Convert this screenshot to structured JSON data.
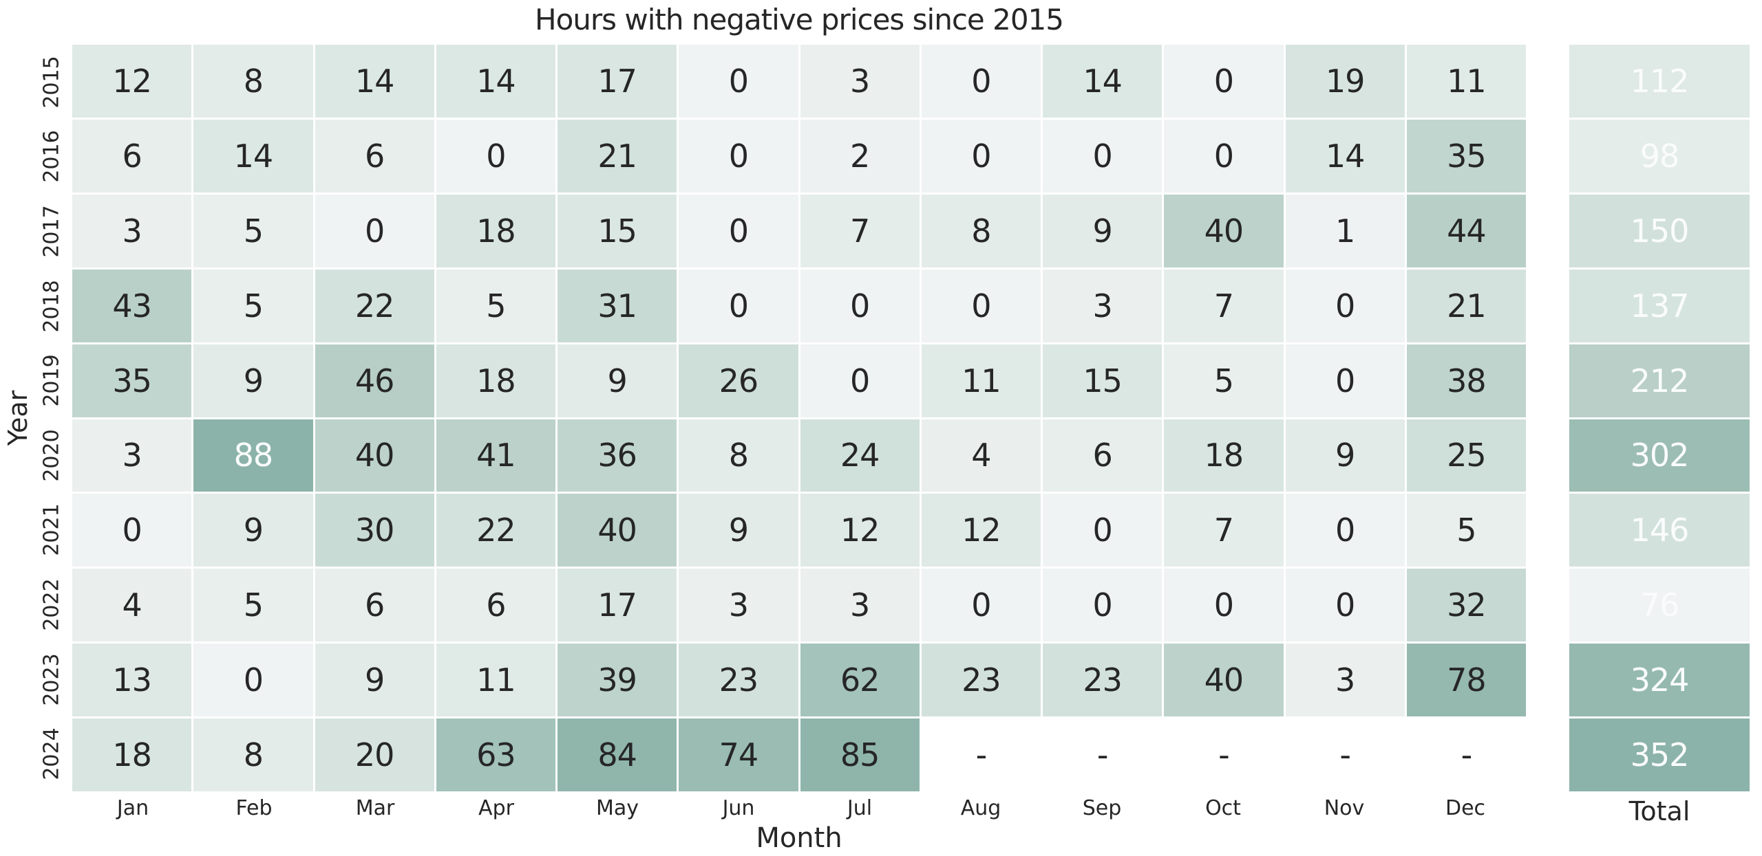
{
  "title": "Hours with negative prices since 2015",
  "chart_data": {
    "type": "heatmap",
    "title": "Hours with negative prices since 2015",
    "xlabel": "Month",
    "ylabel": "Year",
    "totals_label": "Total",
    "columns": [
      "Jan",
      "Feb",
      "Mar",
      "Apr",
      "May",
      "Jun",
      "Jul",
      "Aug",
      "Sep",
      "Oct",
      "Nov",
      "Dec"
    ],
    "rows": [
      "2015",
      "2016",
      "2017",
      "2018",
      "2019",
      "2020",
      "2021",
      "2022",
      "2023",
      "2024"
    ],
    "values": [
      [
        12,
        8,
        14,
        14,
        17,
        0,
        3,
        0,
        14,
        0,
        19,
        11
      ],
      [
        6,
        14,
        6,
        0,
        21,
        0,
        2,
        0,
        0,
        0,
        14,
        35
      ],
      [
        3,
        5,
        0,
        18,
        15,
        0,
        7,
        8,
        9,
        40,
        1,
        44
      ],
      [
        43,
        5,
        22,
        5,
        31,
        0,
        0,
        0,
        3,
        7,
        0,
        21
      ],
      [
        35,
        9,
        46,
        18,
        9,
        26,
        0,
        11,
        15,
        5,
        0,
        38
      ],
      [
        3,
        88,
        40,
        41,
        36,
        8,
        24,
        4,
        6,
        18,
        9,
        25
      ],
      [
        0,
        9,
        30,
        22,
        40,
        9,
        12,
        12,
        0,
        7,
        0,
        5
      ],
      [
        4,
        5,
        6,
        6,
        17,
        3,
        3,
        0,
        0,
        0,
        0,
        32
      ],
      [
        13,
        0,
        9,
        11,
        39,
        23,
        62,
        23,
        23,
        40,
        3,
        78
      ],
      [
        18,
        8,
        20,
        63,
        84,
        74,
        85,
        null,
        null,
        null,
        null,
        null
      ]
    ],
    "totals": [
      112,
      98,
      150,
      137,
      212,
      302,
      146,
      76,
      324,
      352
    ],
    "missing_marker": "-",
    "color_scale": {
      "anchors": [
        [
          0.0,
          "#f0f3f3"
        ],
        [
          0.102,
          "#e2ebe8"
        ],
        [
          0.205,
          "#d8e5e1"
        ],
        [
          0.455,
          "#bcd2cb"
        ],
        [
          0.5,
          "#b8cfc8"
        ],
        [
          0.716,
          "#a3c2b9"
        ],
        [
          0.841,
          "#9abcb2"
        ],
        [
          1.0,
          "#8cb3a9"
        ]
      ],
      "month_domain": [
        0,
        88
      ],
      "total_domain": [
        76,
        352
      ],
      "month_light_text_min_t": 0.99
    },
    "text_colors": {
      "dark": "#262626",
      "light": "#fafcfc"
    },
    "missing_cell_bg": "#ffffff"
  }
}
